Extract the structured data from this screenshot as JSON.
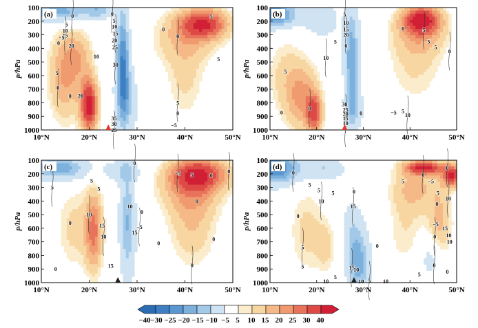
{
  "chart_data": {
    "type": "heatmap",
    "colorbar": {
      "labels": [
        "−40",
        "−30",
        "−25",
        "−20",
        "−15",
        "−10",
        "−5",
        "5",
        "10",
        "15",
        "20",
        "25",
        "30",
        "40"
      ],
      "colors": [
        "#2b6cb5",
        "#3d7fc2",
        "#5a96cf",
        "#7cb0dd",
        "#a3c9e9",
        "#cfe3f3",
        "#ffffff",
        "#fbeccb",
        "#f8d6a2",
        "#f5b987",
        "#f09a6f",
        "#e8735b",
        "#dd4a46",
        "#d11f35"
      ]
    },
    "axes": {
      "ylabel": "p/hPa",
      "yticks": [
        "100",
        "200",
        "300",
        "400",
        "500",
        "600",
        "700",
        "800",
        "900",
        "1000"
      ],
      "xticks": [
        "10°N",
        "20°N",
        "30°N",
        "40°N",
        "50°N"
      ],
      "xlim": [
        10,
        50
      ],
      "ylim": [
        1000,
        100
      ]
    },
    "panels": [
      {
        "label": "(a)",
        "marker": {
          "lat": 24,
          "color": "#e23a2c"
        },
        "features": [
          {
            "lat": 15,
            "plev": 600,
            "dlat": 3.5,
            "dp": 330,
            "v": 18
          },
          {
            "lat": 20,
            "plev": 820,
            "dlat": 1.8,
            "dp": 200,
            "v": 38
          },
          {
            "lat": 18,
            "plev": 450,
            "dlat": 3,
            "dp": 180,
            "v": 10
          },
          {
            "lat": 27,
            "plev": 520,
            "dlat": 1.4,
            "dp": 420,
            "v": -28
          },
          {
            "lat": 28,
            "plev": 800,
            "dlat": 2.5,
            "dp": 250,
            "v": -10
          },
          {
            "lat": 14,
            "plev": 130,
            "dlat": 6,
            "dp": 80,
            "v": -22
          },
          {
            "lat": 22,
            "plev": 120,
            "dlat": 3,
            "dp": 60,
            "v": -14
          },
          {
            "lat": 44,
            "plev": 220,
            "dlat": 5,
            "dp": 110,
            "v": 32
          },
          {
            "lat": 40,
            "plev": 330,
            "dlat": 7,
            "dp": 200,
            "v": 12
          },
          {
            "lat": 40,
            "plev": 650,
            "dlat": 4,
            "dp": 280,
            "v": 8
          }
        ],
        "contour_labels": [
          {
            "lat": 16.5,
            "plev": 160,
            "text": "0"
          },
          {
            "lat": 15.3,
            "plev": 225,
            "text": "5"
          },
          {
            "lat": 15,
            "plev": 270,
            "text": "10"
          },
          {
            "lat": 15,
            "plev": 305,
            "text": "15"
          },
          {
            "lat": 14.2,
            "plev": 320,
            "text": "−5"
          },
          {
            "lat": 13.6,
            "plev": 360,
            "text": "0"
          },
          {
            "lat": 16.3,
            "plev": 380,
            "text": "20"
          },
          {
            "lat": 21.5,
            "plev": 460,
            "text": "10"
          },
          {
            "lat": 13.3,
            "plev": 580,
            "text": "5"
          },
          {
            "lat": 13.5,
            "plev": 690,
            "text": "0"
          },
          {
            "lat": 16,
            "plev": 750,
            "text": "0"
          },
          {
            "lat": 18.2,
            "plev": 750,
            "text": "20"
          },
          {
            "lat": 24.8,
            "plev": 145,
            "text": "0"
          },
          {
            "lat": 25.2,
            "plev": 195,
            "text": "5"
          },
          {
            "lat": 25.3,
            "plev": 240,
            "text": "10"
          },
          {
            "lat": 25.5,
            "plev": 290,
            "text": "15"
          },
          {
            "lat": 25.3,
            "plev": 340,
            "text": "20"
          },
          {
            "lat": 25.4,
            "plev": 390,
            "text": "25"
          },
          {
            "lat": 25.5,
            "plev": 520,
            "text": "30"
          },
          {
            "lat": 25.2,
            "plev": 915,
            "text": "35"
          },
          {
            "lat": 25.2,
            "plev": 955,
            "text": "30"
          },
          {
            "lat": 25.2,
            "plev": 1000,
            "text": "25"
          },
          {
            "lat": 35.5,
            "plev": 260,
            "text": "0"
          },
          {
            "lat": 45.5,
            "plev": 165,
            "text": "5"
          },
          {
            "lat": 38.5,
            "plev": 310,
            "text": "0"
          },
          {
            "lat": 47,
            "plev": 480,
            "text": "5"
          },
          {
            "lat": 38.5,
            "plev": 875,
            "text": "0"
          },
          {
            "lat": 38.5,
            "plev": 800,
            "text": "5"
          },
          {
            "lat": 37.7,
            "plev": 965,
            "text": "−5"
          }
        ]
      },
      {
        "label": "(b)",
        "marker": {
          "lat": 26,
          "color": "#e23a2c"
        },
        "features": [
          {
            "lat": 17,
            "plev": 760,
            "dlat": 3.5,
            "dp": 250,
            "v": 18
          },
          {
            "lat": 19.5,
            "plev": 880,
            "dlat": 1.6,
            "dp": 140,
            "v": 26
          },
          {
            "lat": 13,
            "plev": 600,
            "dlat": 4,
            "dp": 300,
            "v": 8
          },
          {
            "lat": 27.5,
            "plev": 480,
            "dlat": 1.6,
            "dp": 420,
            "v": -22
          },
          {
            "lat": 28,
            "plev": 850,
            "dlat": 2,
            "dp": 150,
            "v": -10
          },
          {
            "lat": 11,
            "plev": 150,
            "dlat": 5,
            "dp": 100,
            "v": -28
          },
          {
            "lat": 21,
            "plev": 190,
            "dlat": 3.5,
            "dp": 120,
            "v": -12
          },
          {
            "lat": 42.5,
            "plev": 190,
            "dlat": 4,
            "dp": 100,
            "v": 34
          },
          {
            "lat": 42,
            "plev": 300,
            "dlat": 6,
            "dp": 180,
            "v": 14
          },
          {
            "lat": 41,
            "plev": 580,
            "dlat": 6,
            "dp": 250,
            "v": 7
          }
        ],
        "contour_labels": [
          {
            "lat": 26,
            "plev": 150,
            "text": "5"
          },
          {
            "lat": 26.3,
            "plev": 210,
            "text": "10"
          },
          {
            "lat": 26.3,
            "plev": 260,
            "text": "15"
          },
          {
            "lat": 26.3,
            "plev": 300,
            "text": "20"
          },
          {
            "lat": 24,
            "plev": 350,
            "text": "5"
          },
          {
            "lat": 26.3,
            "plev": 380,
            "text": "0"
          },
          {
            "lat": 22,
            "plev": 470,
            "text": "10"
          },
          {
            "lat": 13.3,
            "plev": 570,
            "text": "5"
          },
          {
            "lat": 12.5,
            "plev": 870,
            "text": "0"
          },
          {
            "lat": 18.5,
            "plev": 840,
            "text": "0"
          },
          {
            "lat": 26,
            "plev": 810,
            "text": "30"
          },
          {
            "lat": 26.2,
            "plev": 850,
            "text": "25"
          },
          {
            "lat": 26.2,
            "plev": 880,
            "text": "20"
          },
          {
            "lat": 26.2,
            "plev": 915,
            "text": "15"
          },
          {
            "lat": 26.2,
            "plev": 950,
            "text": "10"
          },
          {
            "lat": 26.2,
            "plev": 985,
            "text": "5"
          },
          {
            "lat": 29.5,
            "plev": 875,
            "text": "0"
          },
          {
            "lat": 38.5,
            "plev": 255,
            "text": "0"
          },
          {
            "lat": 43,
            "plev": 265,
            "text": "5"
          },
          {
            "lat": 44,
            "plev": 350,
            "text": "5"
          },
          {
            "lat": 45.5,
            "plev": 390,
            "text": "5"
          },
          {
            "lat": 48.5,
            "plev": 420,
            "text": "0"
          },
          {
            "lat": 36.5,
            "plev": 870,
            "text": "−5"
          },
          {
            "lat": 38.5,
            "plev": 860,
            "text": "5"
          },
          {
            "lat": 39.5,
            "plev": 890,
            "text": "10"
          }
        ]
      },
      {
        "label": "(c)",
        "marker": {
          "lat": 26,
          "color": "#222222"
        },
        "features": [
          {
            "lat": 21,
            "plev": 620,
            "dlat": 1.8,
            "dp": 300,
            "v": 22
          },
          {
            "lat": 17,
            "plev": 600,
            "dlat": 4,
            "dp": 320,
            "v": 9
          },
          {
            "lat": 28,
            "plev": 560,
            "dlat": 1.7,
            "dp": 420,
            "v": -18
          },
          {
            "lat": 14,
            "plev": 160,
            "dlat": 6,
            "dp": 90,
            "v": -22
          },
          {
            "lat": 27,
            "plev": 180,
            "dlat": 4,
            "dp": 80,
            "v": -10
          },
          {
            "lat": 43,
            "plev": 200,
            "dlat": 6,
            "dp": 120,
            "v": 30
          },
          {
            "lat": 41,
            "plev": 320,
            "dlat": 7,
            "dp": 180,
            "v": 12
          },
          {
            "lat": 41.5,
            "plev": 560,
            "dlat": 5,
            "dp": 330,
            "v": 12
          }
        ],
        "contour_labels": [
          {
            "lat": 12.3,
            "plev": 300,
            "text": "5"
          },
          {
            "lat": 20.5,
            "plev": 250,
            "text": "5"
          },
          {
            "lat": 22,
            "plev": 310,
            "text": "5"
          },
          {
            "lat": 20,
            "plev": 500,
            "text": "10"
          },
          {
            "lat": 16,
            "plev": 560,
            "text": "0"
          },
          {
            "lat": 22.7,
            "plev": 580,
            "text": "15"
          },
          {
            "lat": 23,
            "plev": 660,
            "text": "10"
          },
          {
            "lat": 13,
            "plev": 900,
            "text": "0"
          },
          {
            "lat": 24.5,
            "plev": 875,
            "text": "15"
          },
          {
            "lat": 29.5,
            "plev": 120,
            "text": "0"
          },
          {
            "lat": 28.5,
            "plev": 440,
            "text": "10"
          },
          {
            "lat": 29.5,
            "plev": 630,
            "text": "15"
          },
          {
            "lat": 30.5,
            "plev": 590,
            "text": "−5"
          },
          {
            "lat": 31,
            "plev": 480,
            "text": "0"
          },
          {
            "lat": 34.5,
            "plev": 710,
            "text": "0"
          },
          {
            "lat": 38.5,
            "plev": 195,
            "text": "−5"
          },
          {
            "lat": 41.5,
            "plev": 205,
            "text": "5"
          },
          {
            "lat": 45.5,
            "plev": 210,
            "text": "0"
          },
          {
            "lat": 49.2,
            "plev": 180,
            "text": "0"
          },
          {
            "lat": 42.5,
            "plev": 400,
            "text": "0"
          },
          {
            "lat": 46,
            "plev": 680,
            "text": "0"
          },
          {
            "lat": 41.5,
            "plev": 870,
            "text": "0"
          }
        ]
      },
      {
        "label": "(d)",
        "marker": {
          "lat": 28,
          "color": "#222222"
        },
        "features": [
          {
            "lat": 18,
            "plev": 620,
            "dlat": 4,
            "dp": 330,
            "v": 9
          },
          {
            "lat": 22,
            "plev": 740,
            "dlat": 2,
            "dp": 180,
            "v": 8
          },
          {
            "lat": 29,
            "plev": 860,
            "dlat": 2.5,
            "dp": 260,
            "v": -20
          },
          {
            "lat": 27.5,
            "plev": 580,
            "dlat": 2,
            "dp": 220,
            "v": -8
          },
          {
            "lat": 11,
            "plev": 160,
            "dlat": 6,
            "dp": 120,
            "v": -28
          },
          {
            "lat": 22,
            "plev": 160,
            "dlat": 4,
            "dp": 80,
            "v": -12
          },
          {
            "lat": 43,
            "plev": 155,
            "dlat": 4,
            "dp": 50,
            "v": 34
          },
          {
            "lat": 49,
            "plev": 210,
            "dlat": 2,
            "dp": 80,
            "v": 34
          },
          {
            "lat": 41,
            "plev": 300,
            "dlat": 5,
            "dp": 180,
            "v": 13
          },
          {
            "lat": 46.5,
            "plev": 600,
            "dlat": 2.6,
            "dp": 330,
            "v": 14
          },
          {
            "lat": 39,
            "plev": 620,
            "dlat": 4,
            "dp": 300,
            "v": 7
          },
          {
            "lat": 45,
            "plev": 820,
            "dlat": 3,
            "dp": 160,
            "v": -12
          }
        ],
        "contour_labels": [
          {
            "lat": 15,
            "plev": 190,
            "text": "0"
          },
          {
            "lat": 18.5,
            "plev": 280,
            "text": "5"
          },
          {
            "lat": 20.5,
            "plev": 320,
            "text": "5"
          },
          {
            "lat": 21,
            "plev": 400,
            "text": "10"
          },
          {
            "lat": 23.5,
            "plev": 340,
            "text": "5"
          },
          {
            "lat": 16,
            "plev": 510,
            "text": "0"
          },
          {
            "lat": 17,
            "plev": 740,
            "text": "5"
          },
          {
            "lat": 17,
            "plev": 880,
            "text": "5"
          },
          {
            "lat": 28,
            "plev": 330,
            "text": "0"
          },
          {
            "lat": 27.8,
            "plev": 440,
            "text": "15"
          },
          {
            "lat": 22,
            "plev": 990,
            "text": "10"
          },
          {
            "lat": 24,
            "plev": 960,
            "text": "5"
          },
          {
            "lat": 27.5,
            "plev": 890,
            "text": "15"
          },
          {
            "lat": 28.5,
            "plev": 905,
            "text": "10"
          },
          {
            "lat": 29.5,
            "plev": 990,
            "text": "10"
          },
          {
            "lat": 31.3,
            "plev": 985,
            "text": "5"
          },
          {
            "lat": 34.8,
            "plev": 990,
            "text": "10"
          },
          {
            "lat": 33,
            "plev": 730,
            "text": "0"
          },
          {
            "lat": 42.8,
            "plev": 205,
            "text": "0"
          },
          {
            "lat": 38.5,
            "plev": 255,
            "text": "5"
          },
          {
            "lat": 44.5,
            "plev": 255,
            "text": "−5"
          },
          {
            "lat": 48,
            "plev": 155,
            "text": "0"
          },
          {
            "lat": 46,
            "plev": 340,
            "text": "5"
          },
          {
            "lat": 45.8,
            "plev": 420,
            "text": "0"
          },
          {
            "lat": 48.2,
            "plev": 380,
            "text": "10"
          },
          {
            "lat": 45.5,
            "plev": 570,
            "text": "−5"
          },
          {
            "lat": 47.5,
            "plev": 600,
            "text": "15"
          },
          {
            "lat": 45.3,
            "plev": 660,
            "text": "0"
          },
          {
            "lat": 48.3,
            "plev": 650,
            "text": "10"
          },
          {
            "lat": 48.5,
            "plev": 700,
            "text": "10"
          },
          {
            "lat": 45.2,
            "plev": 870,
            "text": "0"
          },
          {
            "lat": 48,
            "plev": 920,
            "text": "0"
          },
          {
            "lat": 42,
            "plev": 940,
            "text": "5"
          }
        ]
      }
    ]
  }
}
